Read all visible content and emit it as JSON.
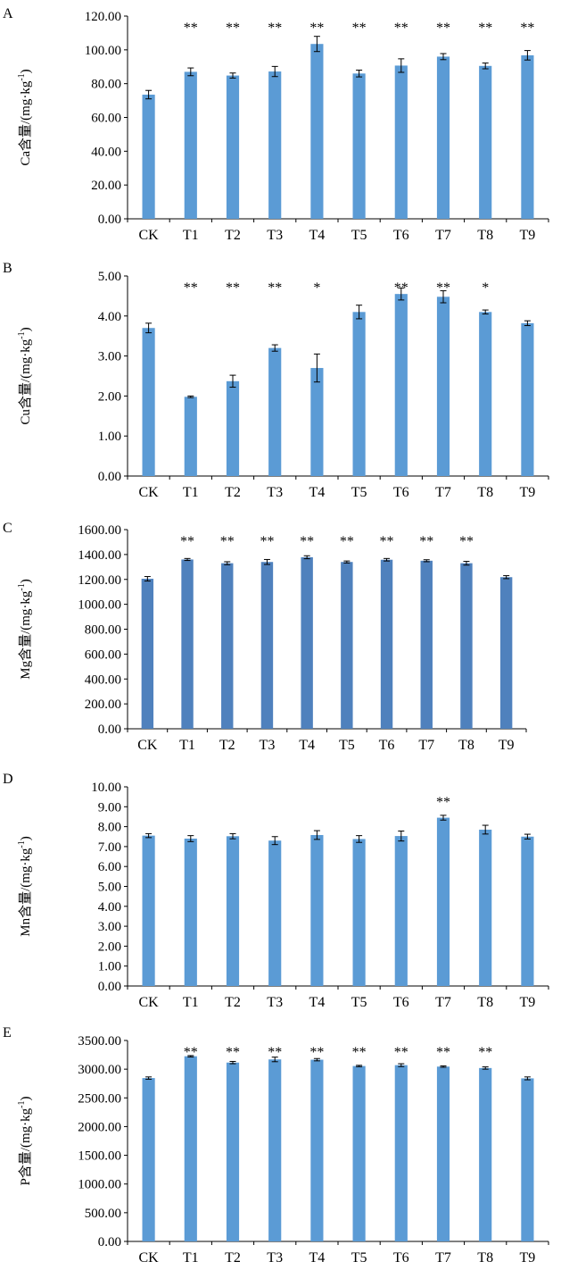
{
  "chart_data": [
    {
      "panel": "A",
      "type": "bar",
      "categories": [
        "CK",
        "T1",
        "T2",
        "T3",
        "T4",
        "T5",
        "T6",
        "T7",
        "T8",
        "T9"
      ],
      "values": [
        73.5,
        87.0,
        84.8,
        87.2,
        103.5,
        86.0,
        90.7,
        96.0,
        90.5,
        96.8
      ],
      "errors": [
        2.5,
        2.3,
        1.5,
        3.0,
        4.5,
        2.0,
        4.0,
        1.8,
        1.7,
        2.8
      ],
      "significance": [
        "",
        "**",
        "**",
        "**",
        "**",
        "**",
        "**",
        "**",
        "**",
        "**"
      ],
      "ylabel": "Ca含量/(mg·kg-1)",
      "ylim": [
        0,
        120
      ],
      "ticks": [
        "0.00",
        "20.00",
        "40.00",
        "60.00",
        "80.00",
        "100.00",
        "120.00"
      ],
      "color": "#5b9bd5"
    },
    {
      "panel": "B",
      "type": "bar",
      "categories": [
        "CK",
        "T1",
        "T2",
        "T3",
        "T4",
        "T5",
        "T6",
        "T7",
        "T8",
        "T9"
      ],
      "values": [
        3.7,
        1.98,
        2.37,
        3.2,
        2.7,
        4.1,
        4.55,
        4.48,
        4.1,
        3.82
      ],
      "errors": [
        0.12,
        0.02,
        0.15,
        0.08,
        0.35,
        0.17,
        0.15,
        0.15,
        0.05,
        0.06
      ],
      "significance": [
        "",
        "**",
        "**",
        "**",
        "*",
        "",
        "**",
        "**",
        "*",
        ""
      ],
      "ylabel": "Cu含量/(mg·kg-1)",
      "ylim": [
        0,
        5
      ],
      "ticks": [
        "0.00",
        "1.00",
        "2.00",
        "3.00",
        "4.00",
        "5.00"
      ],
      "color": "#5b9bd5"
    },
    {
      "panel": "C",
      "type": "bar",
      "categories": [
        "CK",
        "T1",
        "T2",
        "T3",
        "T4",
        "T5",
        "T6",
        "T7",
        "T8",
        "T9"
      ],
      "values": [
        1205,
        1360,
        1330,
        1340,
        1378,
        1340,
        1358,
        1350,
        1330,
        1218
      ],
      "errors": [
        18,
        8,
        12,
        20,
        12,
        8,
        10,
        8,
        15,
        12
      ],
      "significance": [
        "",
        "**",
        "**",
        "**",
        "**",
        "**",
        "**",
        "**",
        "**",
        ""
      ],
      "ylabel": "Mg含量/(mg·kg-1)",
      "ylim": [
        0,
        1600
      ],
      "ticks": [
        "0.00",
        "200.00",
        "400.00",
        "600.00",
        "800.00",
        "1000.00",
        "1200.00",
        "1400.00",
        "1600.00"
      ],
      "color": "#4f81bd"
    },
    {
      "panel": "D",
      "type": "bar",
      "categories": [
        "CK",
        "T1",
        "T2",
        "T3",
        "T4",
        "T5",
        "T6",
        "T7",
        "T8",
        "T9"
      ],
      "values": [
        7.55,
        7.4,
        7.52,
        7.3,
        7.58,
        7.38,
        7.53,
        8.45,
        7.85,
        7.5
      ],
      "errors": [
        0.1,
        0.15,
        0.13,
        0.2,
        0.22,
        0.17,
        0.25,
        0.12,
        0.22,
        0.12
      ],
      "significance": [
        "",
        "",
        "",
        "",
        "",
        "",
        "",
        "**",
        "",
        ""
      ],
      "ylabel": "Mn含量/(mg·kg-1)",
      "ylim": [
        0,
        10
      ],
      "ticks": [
        "0.00",
        "1.00",
        "2.00",
        "3.00",
        "4.00",
        "5.00",
        "6.00",
        "7.00",
        "8.00",
        "9.00",
        "10.00"
      ],
      "color": "#5b9bd5"
    },
    {
      "panel": "E",
      "type": "bar",
      "categories": [
        "CK",
        "T1",
        "T2",
        "T3",
        "T4",
        "T5",
        "T6",
        "T7",
        "T8",
        "T9"
      ],
      "values": [
        2845,
        3225,
        3115,
        3170,
        3165,
        3055,
        3070,
        3045,
        3020,
        2840
      ],
      "errors": [
        20,
        12,
        20,
        40,
        20,
        12,
        25,
        12,
        20,
        25
      ],
      "significance": [
        "",
        "**",
        "**",
        "**",
        "**",
        "**",
        "**",
        "**",
        "**",
        ""
      ],
      "ylabel": "P含量/(mg·kg-1)",
      "ylim": [
        0,
        3500
      ],
      "ticks": [
        "0.00",
        "500.00",
        "1000.00",
        "1500.00",
        "2000.00",
        "2500.00",
        "3000.00",
        "3500.00"
      ],
      "color": "#5b9bd5"
    }
  ]
}
